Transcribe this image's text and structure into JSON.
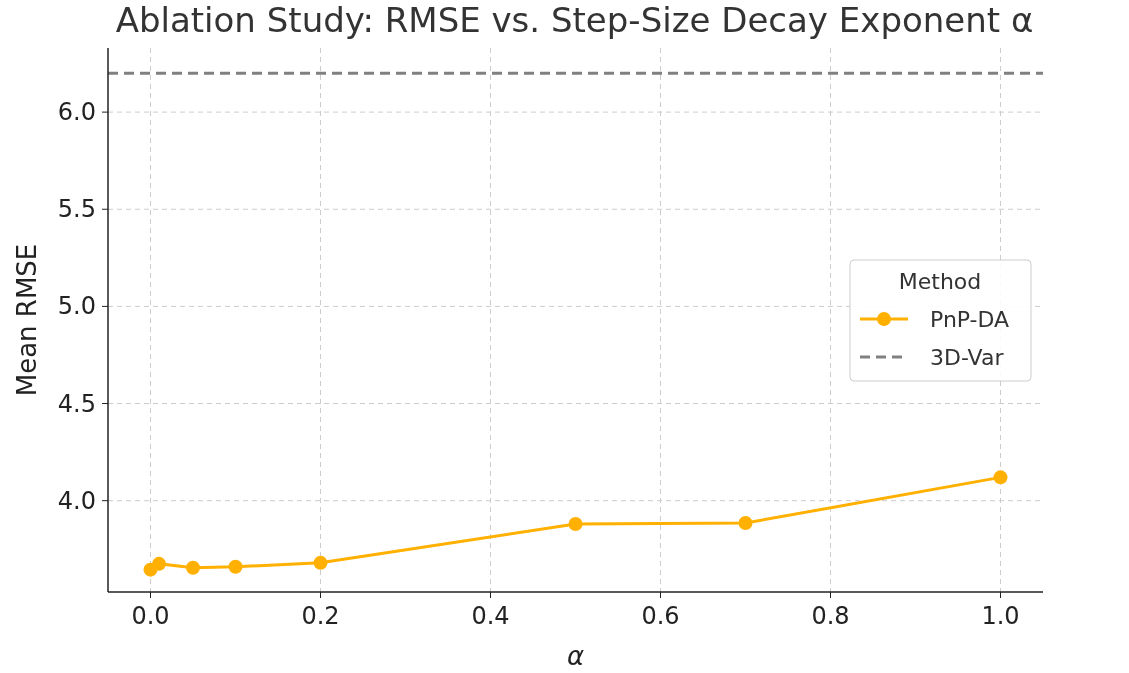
{
  "chart_data": {
    "type": "line",
    "title": "Ablation Study: RMSE vs. Step-Size Decay Exponent α",
    "xlabel": "α",
    "ylabel": "Mean RMSE",
    "legend_title": "Method",
    "x": [
      0,
      0.01,
      0.05,
      0.1,
      0.2,
      0.5,
      0.7,
      1.0
    ],
    "series": [
      {
        "name": "PnP-DA",
        "color": "#ffb000",
        "values": [
          3.645,
          3.675,
          3.655,
          3.66,
          3.68,
          3.88,
          3.885,
          4.12
        ]
      }
    ],
    "ref_lines": [
      {
        "axis": "y",
        "value": 6.2,
        "label": "3D-Var",
        "color": "#808080",
        "line_style": "dashed"
      }
    ],
    "xlim": [
      -0.05,
      1.05
    ],
    "xticks": [
      {
        "value": 0,
        "label": "0.0"
      },
      0.2,
      0.4,
      0.6,
      0.8,
      {
        "value": 1,
        "label": "1.0"
      }
    ],
    "ylim": [
      3.53,
      6.33
    ],
    "yticks": [
      {
        "value": 4,
        "label": "4.0"
      },
      4.5,
      {
        "value": 5,
        "label": "5.0"
      },
      5.5,
      {
        "value": 6,
        "label": "6.0"
      }
    ],
    "grid": true,
    "legend": "right",
    "marker": "circle",
    "line_style": "solid"
  }
}
